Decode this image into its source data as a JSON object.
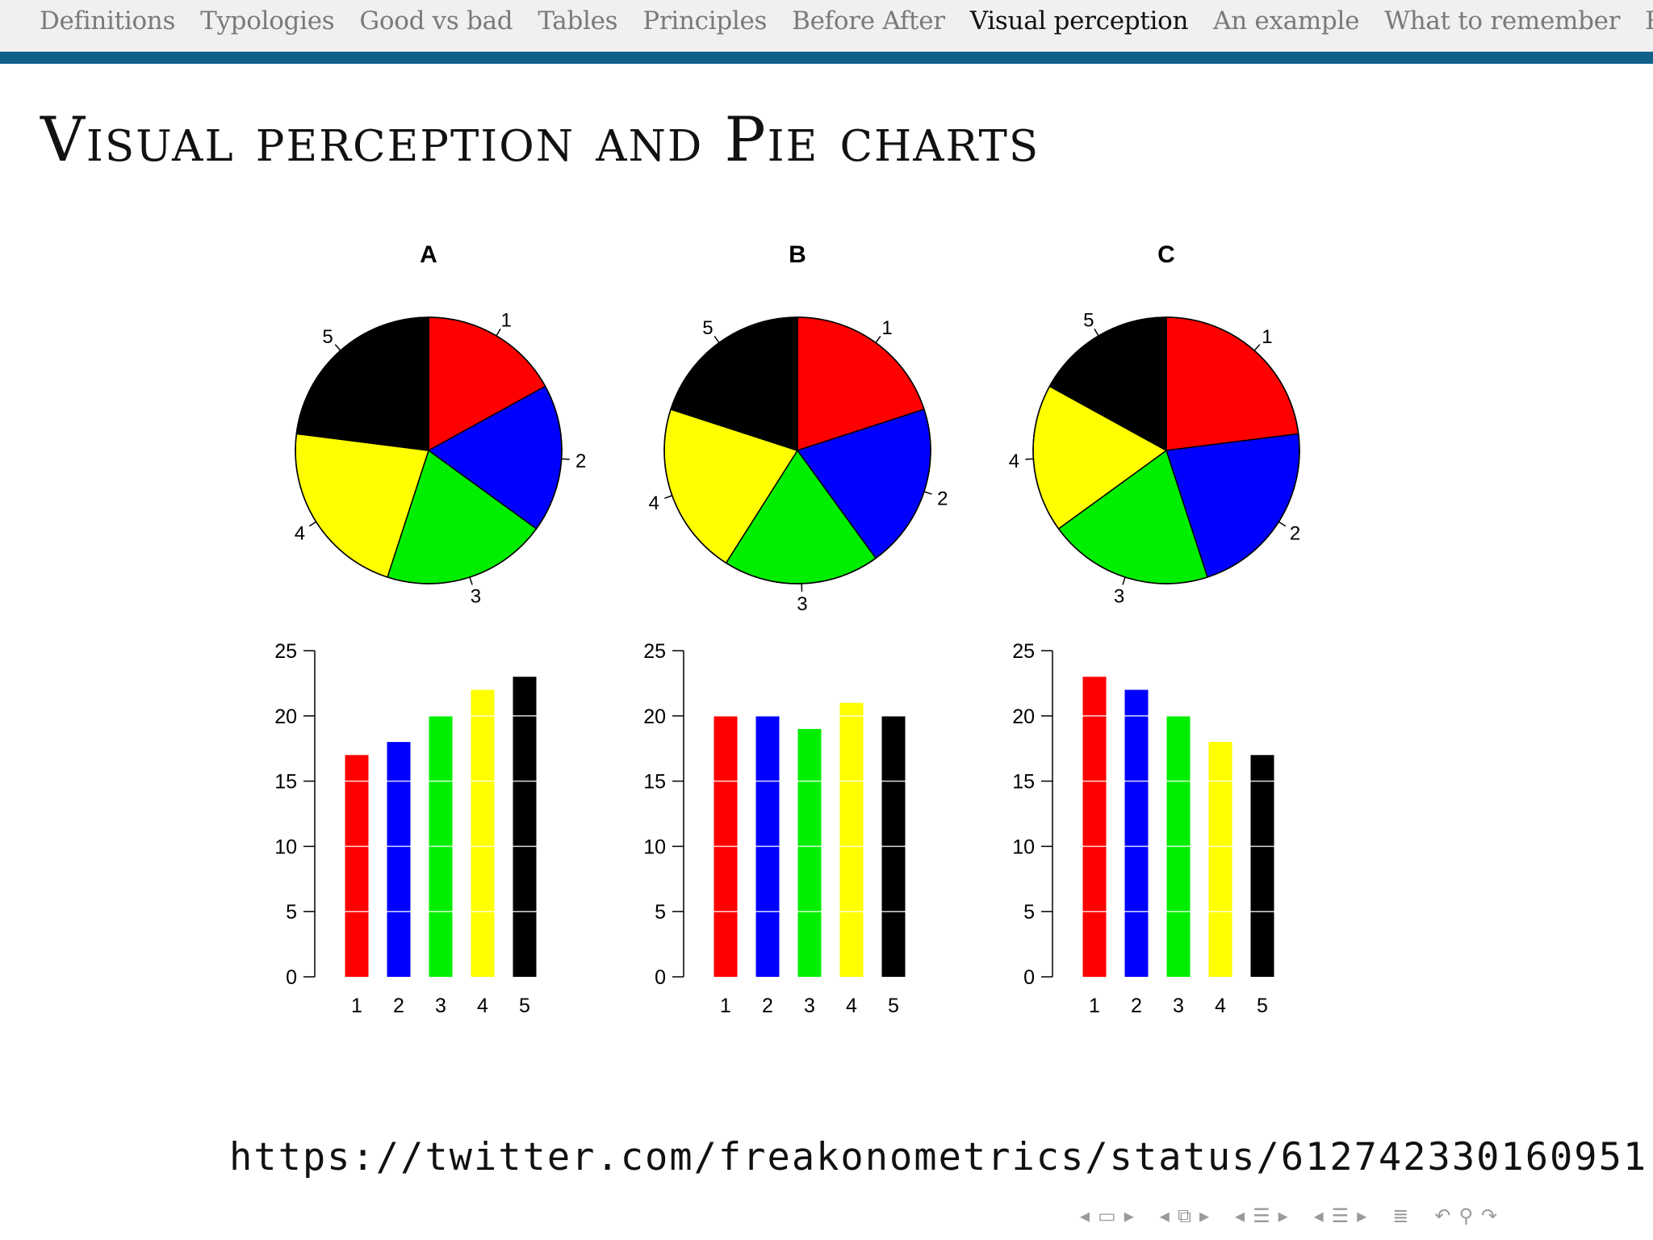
{
  "navbar": {
    "items": [
      "Definitions",
      "Typologies",
      "Good vs bad",
      "Tables",
      "Principles",
      "Before After",
      "Visual perception",
      "An example",
      "What to remember",
      "Références"
    ],
    "active_index": 6
  },
  "slide": {
    "title": "Visual perception and Pie charts",
    "source_url": "https://twitter.com/freakonometrics/status/612742330160951"
  },
  "colors": [
    "#ff0000",
    "#0000ff",
    "#00ee00",
    "#ffff00",
    "#000000"
  ],
  "chart_data": [
    {
      "type": "pie",
      "title": "A",
      "categories": [
        "1",
        "2",
        "3",
        "4",
        "5"
      ],
      "values": [
        17,
        18,
        20,
        22,
        23
      ]
    },
    {
      "type": "pie",
      "title": "B",
      "categories": [
        "1",
        "2",
        "3",
        "4",
        "5"
      ],
      "values": [
        20,
        20,
        19,
        21,
        20
      ]
    },
    {
      "type": "pie",
      "title": "C",
      "categories": [
        "1",
        "2",
        "3",
        "4",
        "5"
      ],
      "values": [
        23,
        22,
        20,
        18,
        17
      ]
    },
    {
      "type": "bar",
      "title": "",
      "categories": [
        "1",
        "2",
        "3",
        "4",
        "5"
      ],
      "values": [
        17,
        18,
        20,
        22,
        23
      ],
      "ylim": [
        0,
        25
      ],
      "yticks": [
        0,
        5,
        10,
        15,
        20,
        25
      ],
      "grid": "white horizontal lines inside bars"
    },
    {
      "type": "bar",
      "title": "",
      "categories": [
        "1",
        "2",
        "3",
        "4",
        "5"
      ],
      "values": [
        20,
        20,
        19,
        21,
        20
      ],
      "ylim": [
        0,
        25
      ],
      "yticks": [
        0,
        5,
        10,
        15,
        20,
        25
      ],
      "grid": "white horizontal lines inside bars"
    },
    {
      "type": "bar",
      "title": "",
      "categories": [
        "1",
        "2",
        "3",
        "4",
        "5"
      ],
      "values": [
        23,
        22,
        20,
        18,
        17
      ],
      "ylim": [
        0,
        25
      ],
      "yticks": [
        0,
        5,
        10,
        15,
        20,
        25
      ],
      "grid": "white horizontal lines inside bars"
    }
  ],
  "controls": {
    "icons": [
      "nav-left-arrow-icon",
      "frame-icon",
      "nav-right-arrow-icon",
      "nav-left-arrow-icon",
      "subsection-icon",
      "nav-right-arrow-icon",
      "nav-left-arrow-icon",
      "section-icon",
      "nav-right-arrow-icon",
      "nav-left-arrow-icon",
      "presentation-icon",
      "nav-right-arrow-icon",
      "appendix-icon",
      "back-icon",
      "search-icon",
      "forward-icon"
    ]
  }
}
